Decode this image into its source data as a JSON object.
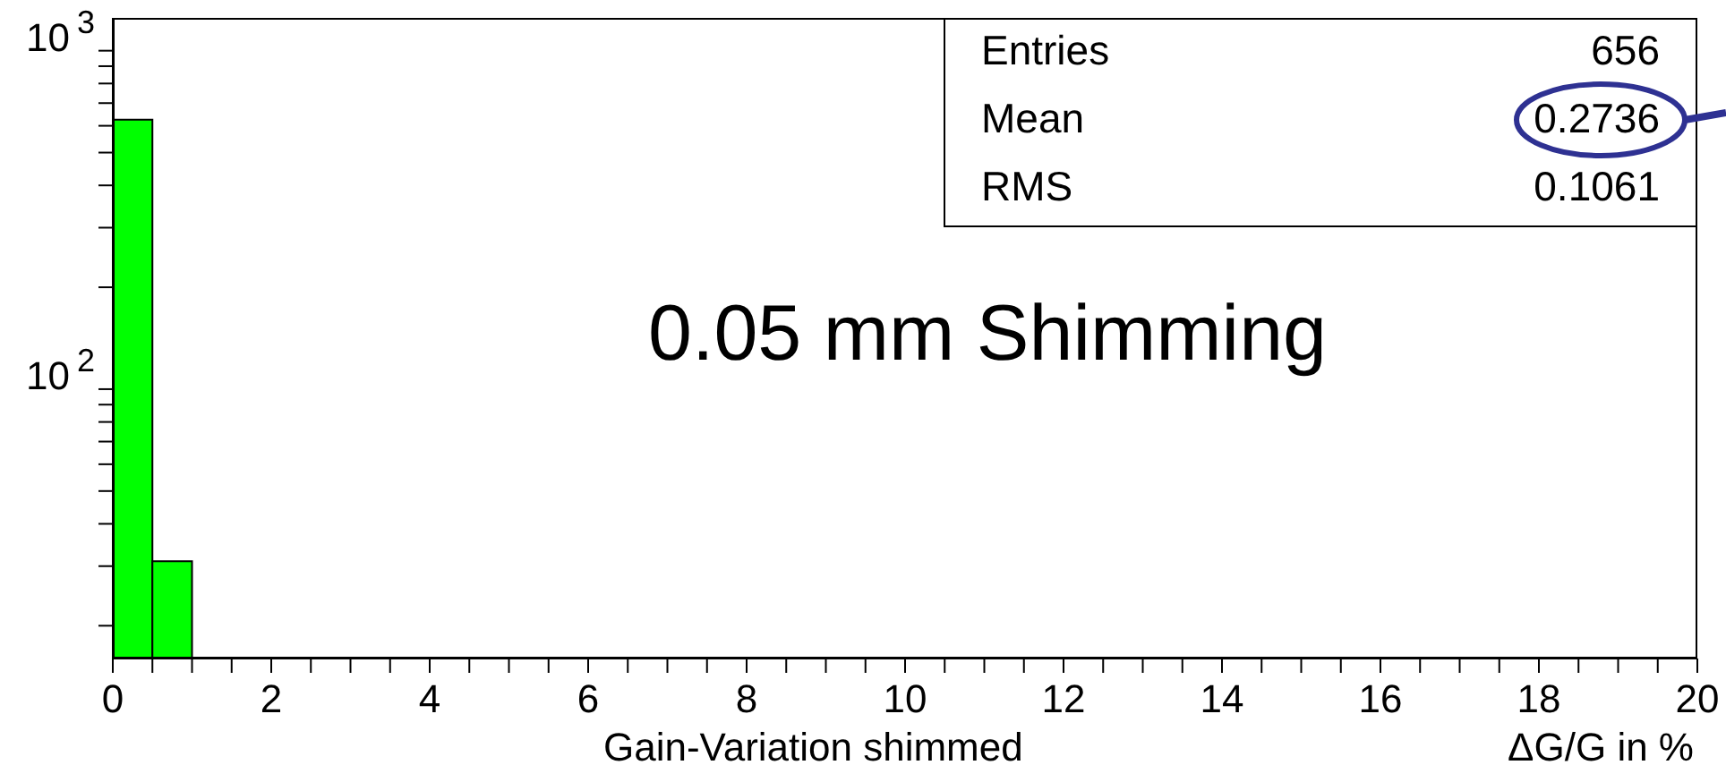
{
  "chart_data": {
    "type": "histogram",
    "bins": [
      0,
      0.5,
      1
    ],
    "values": [
      625,
      31
    ],
    "color": "#00ff00",
    "xlabel": "Gain-Variation   shimmed",
    "annotations": [
      "ΔG/G in %",
      "0.05 mm Shimming",
      "Entries",
      "656",
      "Mean",
      "0.2736",
      "RMS",
      "0.1061"
    ],
    "log": "y",
    "grid": false,
    "xlim": [
      0,
      20
    ],
    "xticks": [
      0,
      {
        "value": 0.5,
        "label": null
      },
      {
        "value": 1,
        "label": null
      },
      {
        "value": 1.5,
        "label": null
      },
      2,
      {
        "value": 2.5,
        "label": null
      },
      {
        "value": 3,
        "label": null
      },
      {
        "value": 3.5,
        "label": null
      },
      4,
      {
        "value": 4.5,
        "label": null
      },
      {
        "value": 5,
        "label": null
      },
      {
        "value": 5.5,
        "label": null
      },
      6,
      {
        "value": 6.5,
        "label": null
      },
      {
        "value": 7,
        "label": null
      },
      {
        "value": 7.5,
        "label": null
      },
      8,
      {
        "value": 8.5,
        "label": null
      },
      {
        "value": 9,
        "label": null
      },
      {
        "value": 9.5,
        "label": null
      },
      10,
      {
        "value": 10.5,
        "label": null
      },
      {
        "value": 11,
        "label": null
      },
      {
        "value": 11.5,
        "label": null
      },
      12,
      {
        "value": 12.5,
        "label": null
      },
      {
        "value": 13,
        "label": null
      },
      {
        "value": 13.5,
        "label": null
      },
      14,
      {
        "value": 14.5,
        "label": null
      },
      {
        "value": 15,
        "label": null
      },
      {
        "value": 15.5,
        "label": null
      },
      16,
      {
        "value": 16.5,
        "label": null
      },
      {
        "value": 17,
        "label": null
      },
      {
        "value": 17.5,
        "label": null
      },
      18,
      {
        "value": 18.5,
        "label": null
      },
      {
        "value": 19,
        "label": null
      },
      {
        "value": 19.5,
        "label": null
      },
      20
    ],
    "ylim": [
      16,
      1250
    ],
    "yticks": [
      {
        "value": 20,
        "label": null
      },
      {
        "value": 30,
        "label": null
      },
      {
        "value": 40,
        "label": null
      },
      {
        "value": 50,
        "label": null
      },
      {
        "value": 60,
        "label": null
      },
      {
        "value": 70,
        "label": null
      },
      {
        "value": 80,
        "label": null
      },
      {
        "value": 90,
        "label": null
      },
      {
        "value": 100,
        "label": "10$^{2}$"
      },
      {
        "value": 200,
        "label": null
      },
      {
        "value": 300,
        "label": null
      },
      {
        "value": 400,
        "label": null
      },
      {
        "value": 500,
        "label": null
      },
      {
        "value": 600,
        "label": null
      },
      {
        "value": 700,
        "label": null
      },
      {
        "value": 800,
        "label": null
      },
      {
        "value": 900,
        "label": null
      },
      {
        "value": 1000,
        "label": "10$^{3}$"
      }
    ]
  }
}
